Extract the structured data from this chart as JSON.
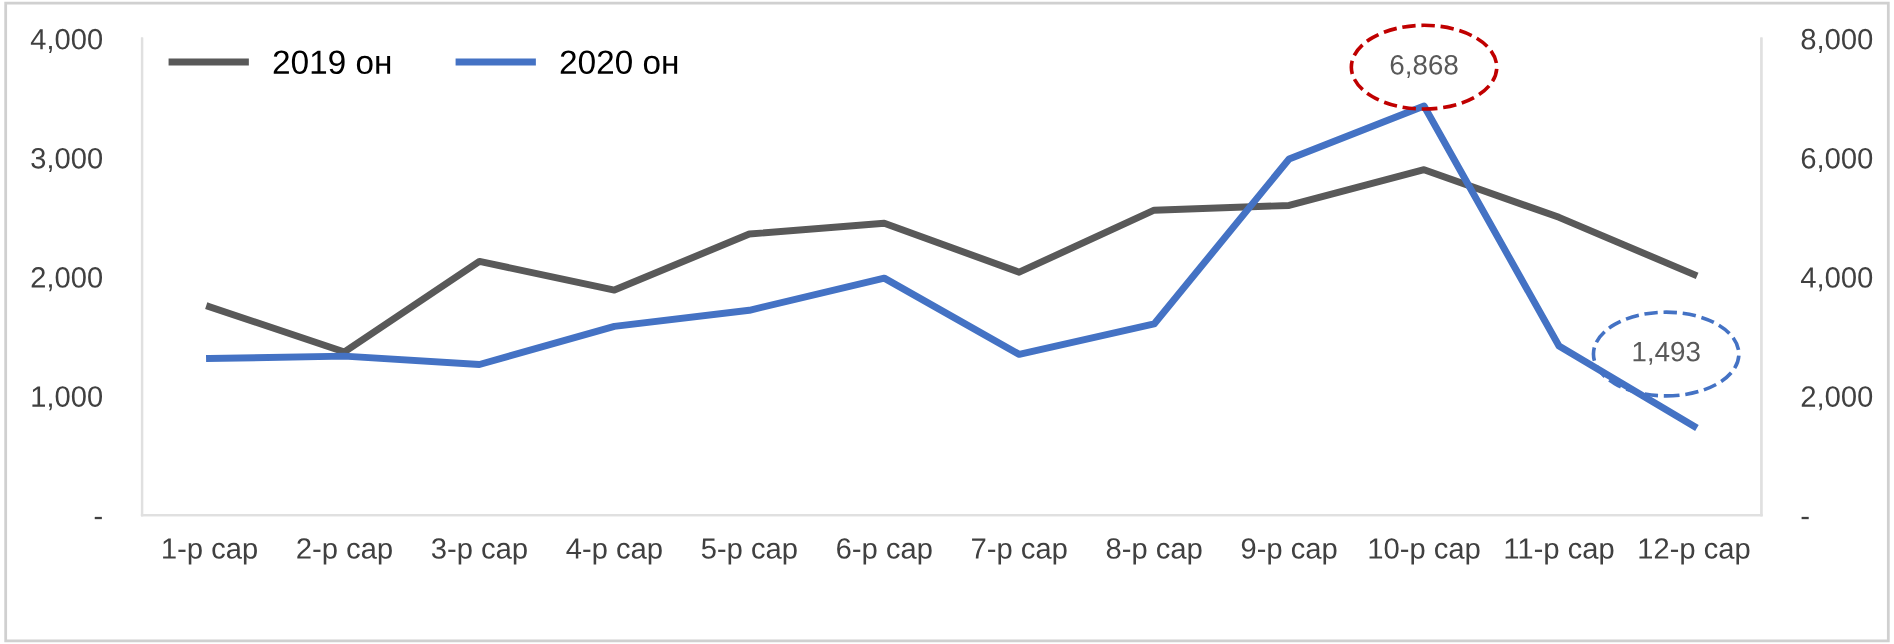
{
  "chart_data": {
    "type": "line",
    "categories": [
      "1-р сар",
      "2-р сар",
      "3-р сар",
      "4-р сар",
      "5-р сар",
      "6-р сар",
      "7-р сар",
      "8-р сар",
      "9-р сар",
      "10-р сар",
      "11-р сар",
      "12-р сар"
    ],
    "series": [
      {
        "name": "2019 он",
        "color": "#595959",
        "values": [
          1750,
          1370,
          2130,
          1890,
          2360,
          2450,
          2040,
          2560,
          2600,
          2900,
          2500,
          2020
        ]
      },
      {
        "name": "2020 он",
        "color": "#4472c4",
        "axis": "y2",
        "values": [
          2630,
          2670,
          2530,
          3170,
          3440,
          3980,
          2700,
          3210,
          5980,
          6868,
          2840,
          1493
        ],
        "value_labels": [
          null,
          null,
          null,
          null,
          null,
          null,
          null,
          null,
          null,
          "6,868",
          null,
          "1,493"
        ]
      }
    ],
    "ylim": [
      0,
      4000
    ],
    "yticks": [
      {
        "value": 0,
        "label": "-"
      },
      {
        "value": 1000,
        "label": "1,000"
      },
      {
        "value": 2000,
        "label": "2,000"
      },
      {
        "value": 3000,
        "label": "3,000"
      },
      {
        "value": 4000,
        "label": "4,000"
      }
    ],
    "y2lim": [
      0,
      8000
    ],
    "y2ticks": [
      {
        "value": 0,
        "label": "-"
      },
      {
        "value": 2000,
        "label": "2,000"
      },
      {
        "value": 4000,
        "label": "4,000"
      },
      {
        "value": 6000,
        "label": "6,000"
      },
      {
        "value": 8000,
        "label": "8,000"
      }
    ],
    "legend": "top left",
    "grid": false,
    "marker": "none",
    "line_style": "solid"
  }
}
